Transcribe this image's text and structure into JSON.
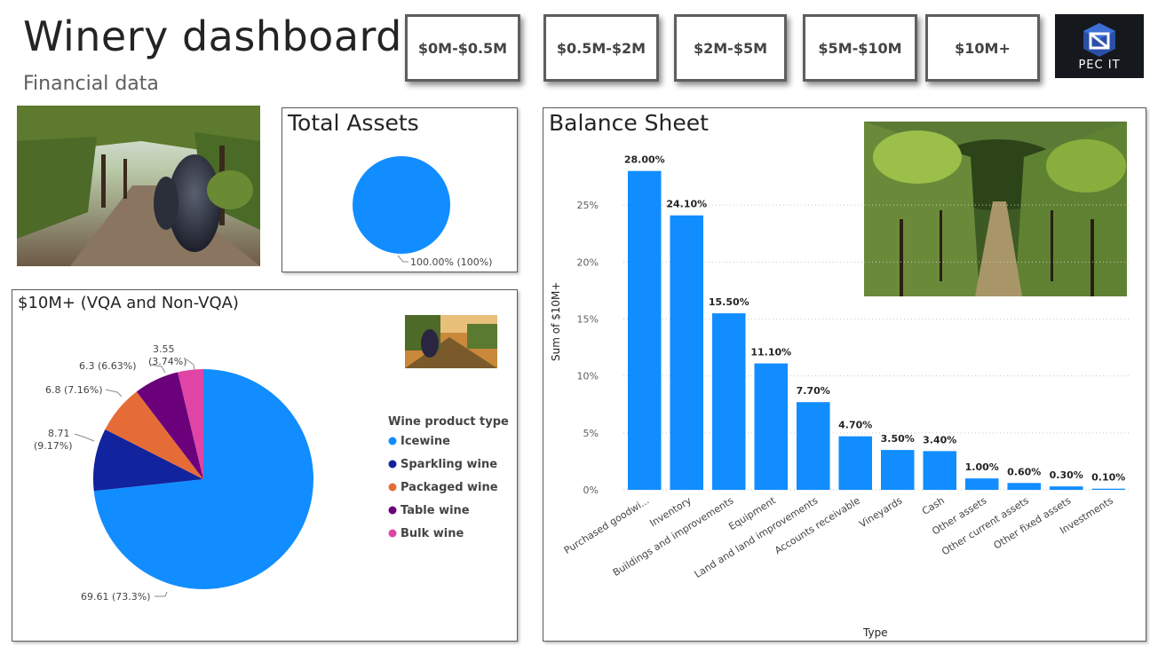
{
  "header": {
    "title": "Winery dashboard",
    "subtitle": "Financial data"
  },
  "slicers": [
    {
      "label": "$0M-$0.5M"
    },
    {
      "label": "$0.5M-$2M"
    },
    {
      "label": "$2M-$5M"
    },
    {
      "label": "$5M-$10M"
    },
    {
      "label": "$10M+"
    }
  ],
  "logo": {
    "text": "PEC IT",
    "icon": "pec-it-logo-icon"
  },
  "colors": {
    "accent_blue": "#118DFF",
    "dark_blue": "#12239E",
    "orange": "#E66C37",
    "purple": "#6B007B",
    "pink": "#E044A7"
  },
  "total_assets": {
    "title": "Total Assets",
    "chart_data": {
      "type": "pie",
      "slices": [
        {
          "value": 100,
          "label": "100.00% (100%)"
        }
      ]
    }
  },
  "vqa_panel": {
    "title": "$10M+ (VQA and Non-VQA)",
    "chart_data": {
      "type": "pie",
      "legend_title": "Wine product type",
      "legend_position": "right",
      "slices": [
        {
          "name": "Icewine",
          "value": 69.61,
          "label": "69.61 (73.3%)",
          "color": "#118DFF"
        },
        {
          "name": "Sparkling wine",
          "value": 8.71,
          "label_line1": "8.71",
          "label_line2": "(9.17%)",
          "color": "#12239E"
        },
        {
          "name": "Packaged wine",
          "value": 6.8,
          "label": "6.8 (7.16%)",
          "color": "#E66C37"
        },
        {
          "name": "Table wine",
          "value": 6.3,
          "label": "6.3 (6.63%)",
          "color": "#6B007B"
        },
        {
          "name": "Bulk wine",
          "value": 3.55,
          "label_line1": "3.55",
          "label_line2": "(3.74%)",
          "color": "#E044A7"
        }
      ]
    }
  },
  "balance_sheet": {
    "title": "Balance Sheet",
    "chart_data": {
      "type": "bar",
      "xlabel": "Type",
      "ylabel": "Sum of $10M+",
      "ylim": [
        0,
        30
      ],
      "yticks": [
        {
          "value": 0,
          "label": "0%"
        },
        {
          "value": 5,
          "label": "5%"
        },
        {
          "value": 10,
          "label": "10%"
        },
        {
          "value": 15,
          "label": "15%"
        },
        {
          "value": 20,
          "label": "20%"
        },
        {
          "value": 25,
          "label": "25%"
        }
      ],
      "grid": true,
      "categories": [
        "Purchased goodwi...",
        "Inventory",
        "Buildings and improvements",
        "Equipment",
        "Land and land improvements",
        "Accounts receivable",
        "Vineyards",
        "Cash",
        "Other assets",
        "Other current assets",
        "Other fixed assets",
        "Investments"
      ],
      "values": [
        28.0,
        24.1,
        15.5,
        11.1,
        7.7,
        4.7,
        3.5,
        3.4,
        1.0,
        0.6,
        0.3,
        0.1
      ],
      "value_labels": [
        "28.00%",
        "24.10%",
        "15.50%",
        "11.10%",
        "7.70%",
        "4.70%",
        "3.50%",
        "3.40%",
        "1.00%",
        "0.60%",
        "0.30%",
        "0.10%"
      ],
      "color": "#118DFF"
    }
  }
}
